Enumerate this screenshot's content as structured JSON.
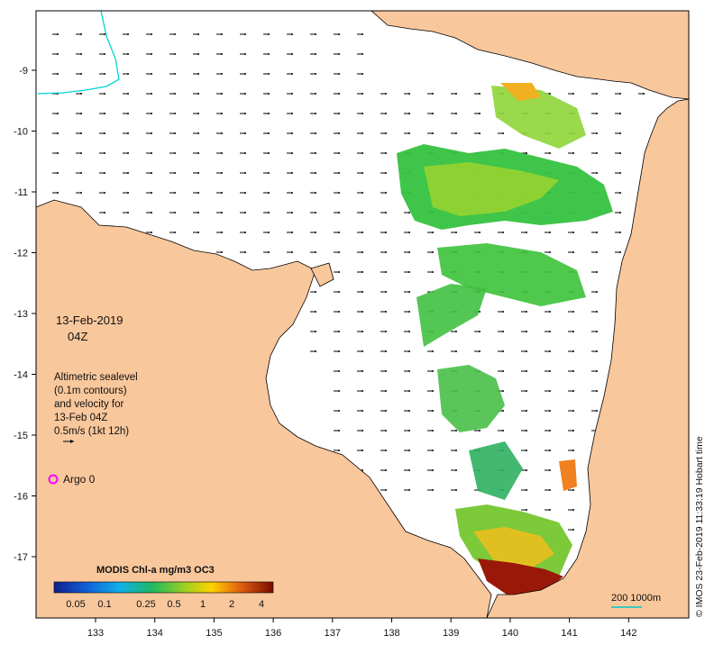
{
  "map": {
    "date": "13-Feb-2019",
    "time": "04Z",
    "legend_lines": [
      "Altimetric sealevel",
      "(0.1m contours)",
      "and velocity for",
      "13-Feb 04Z",
      "0.5m/s (1kt 12h)"
    ],
    "argo_label": "Argo 0",
    "colorbar_title": "MODIS Chl-a mg/m3 OC3",
    "colorbar_ticks": [
      "0.05",
      "0.1",
      "0.25",
      "0.5",
      "1",
      "2",
      "4"
    ],
    "scale_label": "200  1000m",
    "credit": "© IMOS 23-Feb-2019 11:33:19 Hobart time",
    "x_ticks": [
      "133",
      "134",
      "135",
      "136",
      "137",
      "138",
      "139",
      "140",
      "141",
      "142"
    ],
    "y_ticks": [
      "-9",
      "-10",
      "-11",
      "-12",
      "-13",
      "-14",
      "-15",
      "-16",
      "-17"
    ],
    "colors": {
      "land": "#f9c79c",
      "sea": "#ffffff",
      "coast": "#000000",
      "argo_marker": "#ff00ff",
      "contour_200m": "#00d6d6",
      "chl_high": "#8b0000",
      "chl_mid": "#ffd400",
      "chl_low": "#22b83a"
    }
  }
}
